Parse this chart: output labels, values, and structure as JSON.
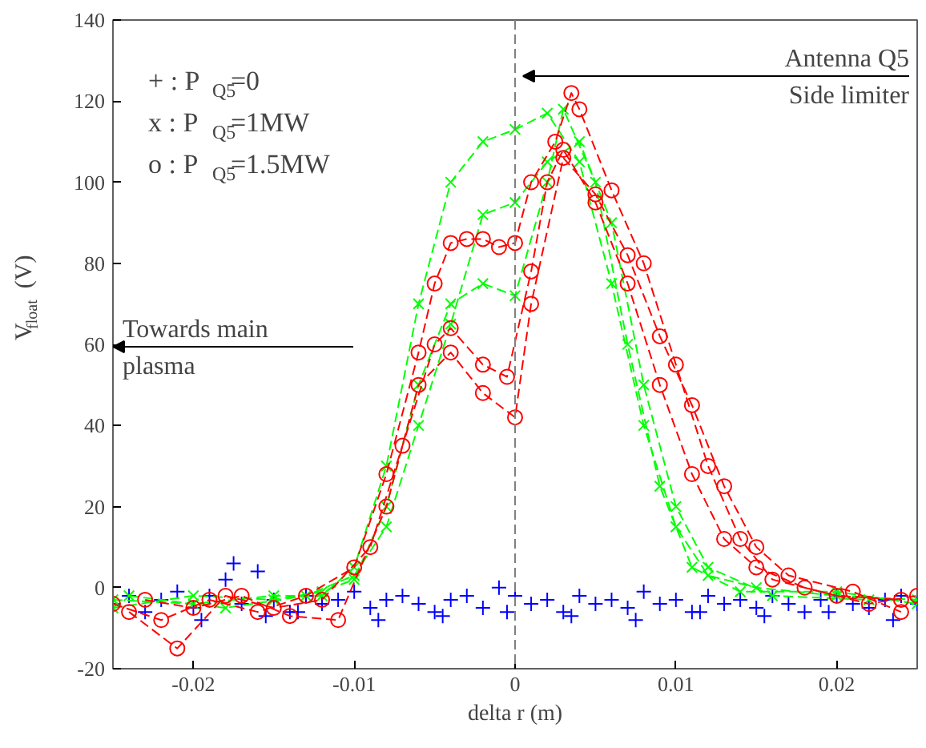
{
  "chart_data": {
    "type": "line",
    "xlabel": "delta r (m)",
    "ylabel": "V$_{float}$ (V)",
    "xlim": [
      -0.025,
      0.025
    ],
    "xticks": [
      -0.02,
      -0.01,
      0,
      0.01,
      0.02
    ],
    "ylim": [
      -20,
      140
    ],
    "yticks": [
      -20,
      0,
      20,
      40,
      60,
      80,
      100,
      120,
      140
    ],
    "grid": false,
    "line_style": "dashed",
    "ref_lines": [
      {
        "axis": "x",
        "value": 0,
        "label": null,
        "color": "#808080",
        "line_style": "dashed"
      }
    ],
    "annotations": [
      "Antenna Q5\nSide limiter",
      "Towards main\nplasma",
      "+ : P$_{Q5}$=0",
      "x : P$_{Q5}$=1MW",
      "o : P$_{Q5}$=1.5MW"
    ],
    "series": [
      {
        "type": "scatter",
        "marker": "cross",
        "color": "#0000ff",
        "x": [
          -0.025,
          -0.024,
          -0.023,
          -0.022,
          -0.021,
          -0.02,
          -0.019,
          -0.018,
          -0.017,
          -0.016,
          -0.015,
          -0.014,
          -0.013,
          -0.012,
          -0.011,
          -0.01,
          -0.009,
          -0.008,
          -0.007,
          -0.006,
          -0.005,
          -0.004,
          -0.003,
          -0.002,
          -0.001,
          0,
          0.001,
          0.002,
          0.003,
          0.004,
          0.005,
          0.006,
          0.007,
          0.008,
          0.009,
          0.01,
          0.011,
          0.012,
          0.013,
          0.014,
          0.015,
          0.016,
          0.017,
          0.018,
          0.019,
          0.02,
          0.021,
          0.022,
          0.023,
          0.024,
          0.025,
          -0.0195,
          -0.0175,
          -0.0155,
          -0.0135,
          -0.0085,
          -0.0045,
          -0.0005,
          0.0035,
          0.0075,
          0.0115,
          0.0155,
          0.0195,
          0.0235
        ],
        "values": [
          -4,
          -2,
          -6,
          -3,
          -1,
          -5,
          -2,
          2,
          -4,
          4,
          -3,
          -6,
          -2,
          -4,
          -3,
          -1,
          -5,
          -3,
          -2,
          -4,
          -6,
          -3,
          -2,
          -5,
          0,
          -2,
          -4,
          -3,
          -6,
          -2,
          -4,
          -3,
          -5,
          -1,
          -4,
          -3,
          -6,
          -2,
          -4,
          -3,
          -5,
          -2,
          -4,
          -6,
          -3,
          -2,
          -4,
          -5,
          -3,
          -2,
          -4,
          -8,
          6,
          -7,
          -6,
          -8,
          -7,
          -6,
          -7,
          -8,
          -6,
          -7,
          -6,
          -8
        ]
      },
      {
        "marker": "x",
        "color": "#00ff00",
        "x": [
          -0.025,
          -0.02,
          -0.015,
          -0.012,
          -0.01,
          -0.008,
          -0.006,
          -0.004,
          -0.002,
          0,
          0.002,
          0.004,
          0.006,
          0.008,
          0.01,
          0.012,
          0.015,
          0.02,
          0.025
        ],
        "values": [
          -3,
          -4,
          -2,
          -2,
          5,
          30,
          70,
          100,
          110,
          113,
          117,
          105,
          75,
          40,
          15,
          3,
          0,
          -2,
          -3
        ]
      },
      {
        "marker": "x",
        "color": "#00ff00",
        "x": [
          -0.025,
          -0.02,
          -0.015,
          -0.012,
          -0.01,
          -0.008,
          -0.006,
          -0.004,
          -0.002,
          0,
          0.002,
          0.003,
          0.005,
          0.007,
          0.009,
          0.011,
          0.014,
          0.02,
          0.025
        ],
        "values": [
          -5,
          -2,
          -3,
          -1,
          2,
          20,
          50,
          70,
          75,
          72,
          100,
          118,
          100,
          60,
          25,
          5,
          -1,
          -1,
          -4
        ]
      },
      {
        "marker": "x",
        "color": "#00ff00",
        "x": [
          -0.024,
          -0.018,
          -0.013,
          -0.01,
          -0.008,
          -0.006,
          -0.004,
          -0.002,
          0,
          0.002,
          0.004,
          0.006,
          0.008,
          0.01,
          0.012,
          0.016,
          0.022
        ],
        "values": [
          -2,
          -5,
          -2,
          3,
          15,
          40,
          65,
          92,
          95,
          105,
          110,
          90,
          50,
          20,
          5,
          -2,
          -3
        ]
      },
      {
        "marker": "circle",
        "color": "#ff0000",
        "x": [
          -0.025,
          -0.022,
          -0.019,
          -0.016,
          -0.013,
          -0.01,
          -0.008,
          -0.006,
          -0.005,
          -0.004,
          -0.003,
          -0.002,
          -0.001,
          0,
          0.001,
          0.0025,
          0.0035,
          0.004,
          0.006,
          0.008,
          0.01,
          0.012,
          0.014,
          0.016,
          0.02,
          0.024
        ],
        "values": [
          -4,
          -8,
          -3,
          -6,
          -2,
          5,
          28,
          58,
          75,
          85,
          86,
          86,
          84,
          85,
          100,
          110,
          122,
          118,
          98,
          80,
          55,
          30,
          12,
          2,
          -2,
          -3
        ]
      },
      {
        "marker": "circle",
        "color": "#ff0000",
        "x": [
          -0.024,
          -0.021,
          -0.018,
          -0.015,
          -0.012,
          -0.009,
          -0.007,
          -0.005,
          -0.004,
          -0.002,
          -0.0005,
          0.001,
          0.002,
          0.003,
          0.005,
          0.007,
          0.009,
          0.011,
          0.013,
          0.015,
          0.018,
          0.022,
          0.025
        ],
        "values": [
          -6,
          -15,
          -2,
          -5,
          -3,
          10,
          35,
          60,
          64,
          55,
          52,
          78,
          100,
          108,
          95,
          75,
          50,
          28,
          12,
          5,
          0,
          -4,
          -2
        ]
      },
      {
        "marker": "circle",
        "color": "#ff0000",
        "x": [
          -0.023,
          -0.02,
          -0.017,
          -0.014,
          -0.011,
          -0.008,
          -0.006,
          -0.004,
          -0.002,
          0,
          0.001,
          0.003,
          0.005,
          0.007,
          0.009,
          0.011,
          0.013,
          0.015,
          0.017,
          0.021,
          0.024
        ],
        "values": [
          -3,
          -5,
          -2,
          -7,
          -8,
          20,
          50,
          58,
          48,
          42,
          70,
          106,
          97,
          82,
          62,
          45,
          25,
          10,
          3,
          -1,
          -6
        ]
      }
    ]
  }
}
